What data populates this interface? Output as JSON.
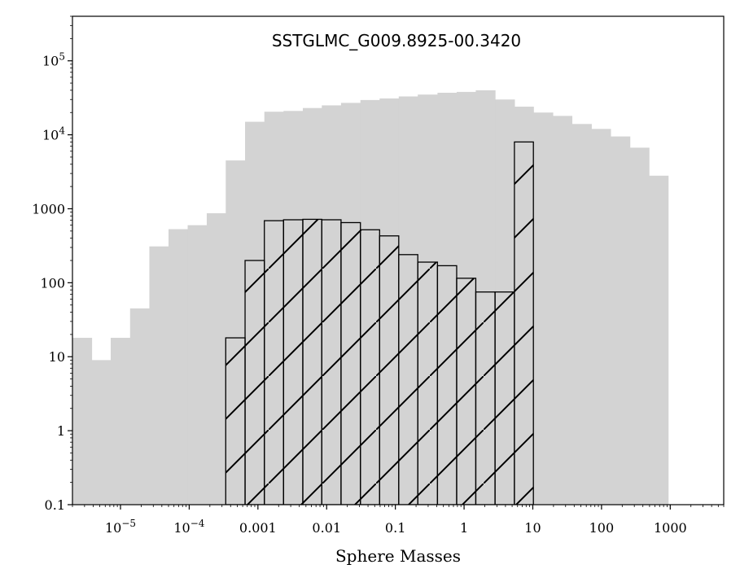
{
  "chart_data": {
    "type": "bar",
    "title": "SSTGLMC_G009.8925-00.3420",
    "xlabel": "Sphere Masses",
    "ylabel": "",
    "x_scale": "log",
    "y_scale": "log",
    "xlim": [
      2e-06,
      6000
    ],
    "ylim": [
      0.1,
      400000
    ],
    "grid": false,
    "legend": "none",
    "colors": {
      "all_models": "#d3d3d3",
      "selected_outline": "#000000",
      "hatch": "#000000"
    },
    "y_ticks": [
      {
        "value": 0.1,
        "label": "0.1"
      },
      {
        "value": 1,
        "label": "1"
      },
      {
        "value": 10,
        "label": "10"
      },
      {
        "value": 100,
        "label": "100"
      },
      {
        "value": 1000,
        "label": "1000"
      },
      {
        "value": 10000,
        "label": "10",
        "sup": "4"
      },
      {
        "value": 100000,
        "label": "10",
        "sup": "5"
      }
    ],
    "x_ticks": [
      {
        "value": 1e-05,
        "label": "10",
        "sup": "−5"
      },
      {
        "value": 0.0001,
        "label": "10",
        "sup": "−4"
      },
      {
        "value": 0.001,
        "label": "0.001"
      },
      {
        "value": 0.01,
        "label": "0.01"
      },
      {
        "value": 0.1,
        "label": "0.1"
      },
      {
        "value": 1,
        "label": "1"
      },
      {
        "value": 10,
        "label": "10"
      },
      {
        "value": 100,
        "label": "100"
      },
      {
        "value": 1000,
        "label": "1000"
      }
    ],
    "series": [
      {
        "style": "filled",
        "bin_edges": [
          2e-06,
          3.8e-06,
          7.2e-06,
          1.38e-05,
          2.63e-05,
          5e-05,
          9.5e-05,
          0.00018,
          0.00034,
          0.00065,
          0.00124,
          0.00236,
          0.0045,
          0.0085,
          0.0162,
          0.031,
          0.059,
          0.112,
          0.212,
          0.41,
          0.78,
          1.48,
          2.82,
          5.4,
          10.2,
          19.5,
          37,
          71,
          135,
          258,
          490,
          930,
          1770,
          3380,
          6000
        ],
        "values": [
          18,
          9,
          18,
          45,
          310,
          530,
          600,
          870,
          4500,
          15000,
          20500,
          21000,
          23000,
          25000,
          27000,
          29500,
          31000,
          33000,
          35000,
          37000,
          38000,
          40000,
          30000,
          24000,
          20000,
          18000,
          14000,
          12000,
          9500,
          6700,
          2800,
          0,
          0,
          0
        ]
      },
      {
        "style": "hatched-outline",
        "bin_edges": [
          0.00034,
          0.00065,
          0.00124,
          0.00236,
          0.0045,
          0.0085,
          0.0162,
          0.031,
          0.059,
          0.112,
          0.212,
          0.41,
          0.78,
          1.48,
          2.82,
          5.4,
          10.2,
          19.5
        ],
        "values": [
          18,
          200,
          690,
          710,
          720,
          710,
          650,
          520,
          430,
          240,
          190,
          170,
          115,
          75,
          75,
          8000,
          0
        ]
      }
    ]
  }
}
